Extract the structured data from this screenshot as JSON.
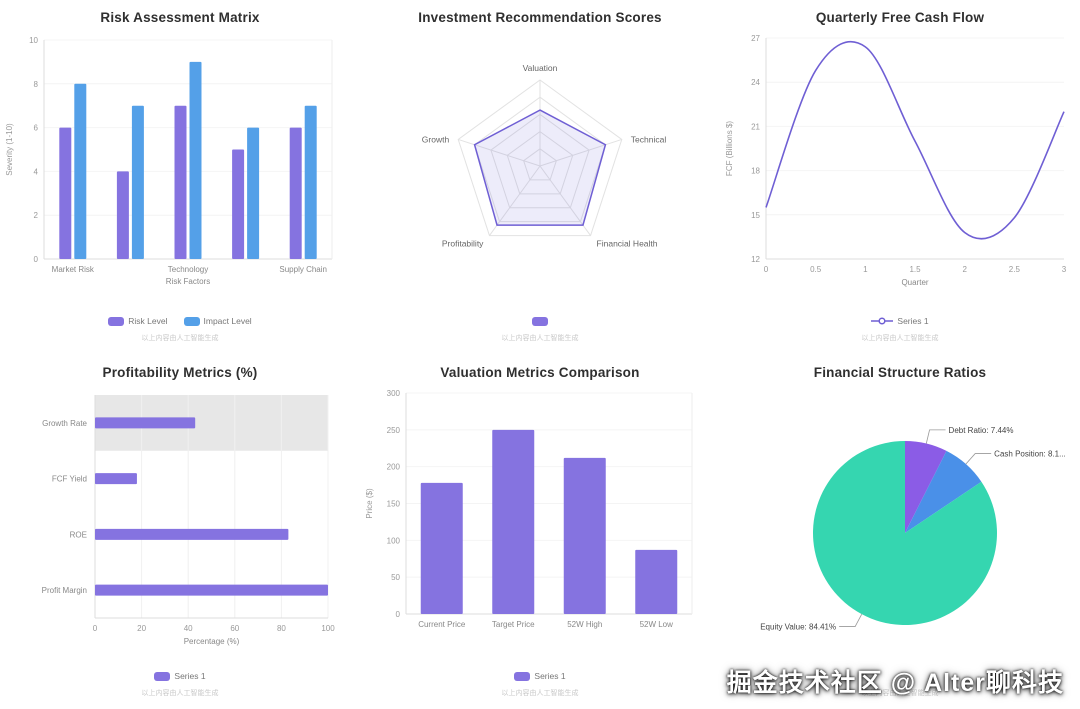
{
  "watermark": "掘金技术社区 @ Alter聊科技",
  "ai_caption": "以上内容由人工智能生成",
  "chart_data": [
    {
      "id": "risk-assessment-matrix",
      "type": "bar",
      "title": "Risk Assessment Matrix",
      "xlabel": "Risk Factors",
      "ylabel": "Severity (1-10)",
      "ylim": [
        0,
        10
      ],
      "yticks": [
        0,
        2,
        4,
        6,
        8,
        10
      ],
      "categories": [
        "Market Risk",
        "",
        "Technology",
        "",
        "Supply Chain"
      ],
      "series": [
        {
          "name": "Risk Level",
          "color": "#8573e0",
          "values": [
            6,
            4,
            7,
            5,
            6
          ]
        },
        {
          "name": "Impact Level",
          "color": "#54a0e8",
          "values": [
            8,
            7,
            9,
            6,
            7
          ]
        }
      ],
      "legend": [
        {
          "label": "Risk Level",
          "color": "#8573e0",
          "marker": "rect"
        },
        {
          "label": "Impact Level",
          "color": "#54a0e8",
          "marker": "rect"
        }
      ]
    },
    {
      "id": "investment-recommendation-scores",
      "type": "radar",
      "title": "Investment Recommendation Scores",
      "axes": [
        "Valuation",
        "Technical",
        "Financial Health",
        "Profitability",
        "Growth"
      ],
      "max": 10,
      "levels": [
        2,
        4,
        6,
        8,
        10
      ],
      "values": [
        6.5,
        8,
        8.5,
        8.5,
        8
      ],
      "color": "#6f5fd4",
      "fill_opacity": 0.12,
      "legend": [
        {
          "label": "",
          "color": "#8573e0",
          "marker": "rect"
        }
      ]
    },
    {
      "id": "quarterly-free-cash-flow",
      "type": "line",
      "title": "Quarterly Free Cash Flow",
      "xlabel": "Quarter",
      "ylabel": "FCF (Billions $)",
      "xlim": [
        0,
        3
      ],
      "ylim": [
        12,
        27
      ],
      "xticks": [
        0,
        0.5,
        1,
        1.5,
        2,
        2.5,
        3
      ],
      "yticks": [
        12,
        15,
        18,
        21,
        24,
        27
      ],
      "x": [
        0,
        0.5,
        1,
        1.5,
        2,
        2.5,
        3
      ],
      "y": [
        15.5,
        24.8,
        26.4,
        20,
        13.8,
        14.8,
        22
      ],
      "color": "#6f5fd4",
      "legend": [
        {
          "label": "Series 1",
          "color": "#6f5fd4",
          "marker": "line"
        }
      ]
    },
    {
      "id": "profitability-metrics",
      "type": "bar",
      "orientation": "horizontal",
      "title": "Profitability Metrics (%)",
      "xlabel": "Percentage (%)",
      "xlim": [
        0,
        100
      ],
      "xticks": [
        0,
        20,
        40,
        60,
        80,
        100
      ],
      "categories": [
        "Growth Rate",
        "FCF Yield",
        "ROE",
        "Profit Margin"
      ],
      "values": [
        43,
        18,
        83,
        100
      ],
      "color": "#8573e0",
      "highlight_index": 0,
      "highlight_color": "#e7e7e7",
      "legend": [
        {
          "label": "Series 1",
          "color": "#8573e0",
          "marker": "rect"
        }
      ]
    },
    {
      "id": "valuation-metrics-comparison",
      "type": "bar",
      "title": "Valuation Metrics Comparison",
      "ylabel": "Price ($)",
      "ylim": [
        0,
        300
      ],
      "yticks": [
        0,
        50,
        100,
        150,
        200,
        250,
        300
      ],
      "categories": [
        "Current Price",
        "Target Price",
        "52W High",
        "52W Low"
      ],
      "values": [
        178,
        250,
        212,
        87
      ],
      "color": "#8573e0",
      "legend": [
        {
          "label": "Series 1",
          "color": "#8573e0",
          "marker": "rect"
        }
      ]
    },
    {
      "id": "financial-structure-ratios",
      "type": "pie",
      "title": "Financial Structure Ratios",
      "slices": [
        {
          "name": "Debt Ratio",
          "label": "Debt Ratio: 7.44%",
          "value": 7.44,
          "color": "#8b5ce6"
        },
        {
          "name": "Cash Position",
          "label": "Cash Position: 8.1...",
          "value": 8.15,
          "color": "#4a90e8"
        },
        {
          "name": "Equity Value",
          "label": "Equity Value: 84.41%",
          "value": 84.41,
          "color": "#35d6b0"
        }
      ],
      "legend": []
    }
  ]
}
